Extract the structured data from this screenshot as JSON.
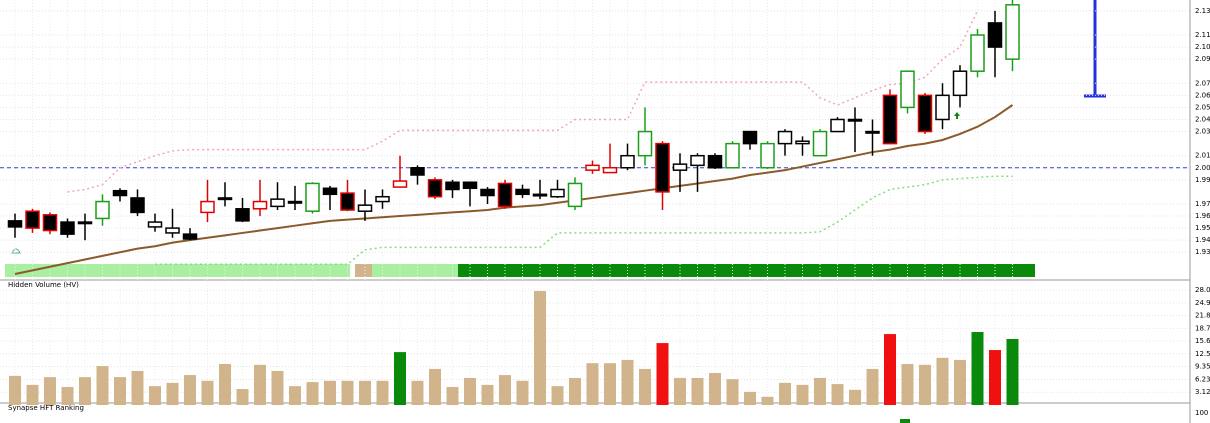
{
  "chart_data": [
    {
      "type": "candlestick",
      "categories": [
        null,
        null,
        null,
        null,
        null,
        null,
        null,
        null,
        null,
        null,
        null,
        null,
        null,
        null,
        null,
        null,
        null,
        null,
        null,
        null,
        null,
        null,
        null,
        null,
        null,
        null,
        null,
        null,
        null,
        null,
        null,
        null,
        null,
        null,
        null,
        null,
        null,
        null,
        null,
        null,
        null,
        null,
        null,
        null,
        null,
        null,
        null,
        null,
        null,
        null,
        null,
        null,
        null,
        null,
        null,
        null,
        null,
        null
      ],
      "open": [
        1.956,
        1.964,
        1.961,
        1.955,
        1.955,
        1.958,
        1.981,
        1.975,
        1.951,
        1.946,
        1.945,
        1.963,
        1.975,
        1.966,
        1.966,
        1.968,
        1.972,
        1.964,
        1.983,
        1.979,
        1.964,
        1.972,
        1.984,
        2.0,
        1.99,
        1.988,
        1.988,
        1.982,
        1.987,
        1.982,
        1.978,
        1.976,
        1.968,
        1.998,
        1.996,
        2.0,
        2.01,
        2.02,
        1.998,
        2.002,
        2.01,
        2.0,
        2.03,
        2.0,
        2.02,
        2.02,
        2.01,
        2.03,
        2.04,
        2.03,
        2.06,
        2.05,
        2.06,
        2.04,
        2.06,
        2.08,
        2.12,
        2.09
      ],
      "high": [
        1.962,
        1.966,
        1.963,
        1.958,
        1.962,
        1.978,
        1.983,
        1.982,
        1.962,
        1.966,
        1.95,
        1.99,
        1.988,
        1.975,
        1.99,
        1.988,
        1.985,
        1.988,
        1.985,
        1.99,
        1.982,
        1.982,
        2.01,
        2.002,
        1.992,
        1.99,
        1.988,
        1.984,
        1.99,
        1.986,
        1.99,
        1.99,
        1.992,
        2.006,
        2.02,
        2.02,
        2.05,
        2.022,
        2.012,
        2.012,
        2.012,
        2.022,
        2.03,
        2.022,
        2.032,
        2.026,
        2.032,
        2.042,
        2.05,
        2.04,
        2.065,
        2.08,
        2.062,
        2.07,
        2.085,
        2.115,
        2.13,
        2.139
      ],
      "low": [
        1.942,
        1.946,
        1.945,
        1.942,
        1.94,
        1.952,
        1.972,
        1.96,
        1.947,
        1.942,
        1.94,
        1.955,
        1.968,
        1.955,
        1.96,
        1.965,
        1.965,
        1.962,
        1.965,
        1.964,
        1.956,
        1.966,
        1.984,
        1.986,
        1.974,
        1.975,
        1.968,
        1.97,
        1.966,
        1.975,
        1.974,
        1.975,
        1.965,
        1.995,
        1.996,
        1.998,
        2.002,
        1.965,
        1.98,
        1.98,
        1.999,
        2.0,
        2.015,
        1.999,
        2.01,
        2.01,
        2.01,
        2.03,
        2.013,
        2.01,
        2.02,
        2.045,
        2.028,
        2.032,
        2.05,
        2.075,
        2.075,
        2.08
      ],
      "close": [
        1.951,
        1.95,
        1.948,
        1.945,
        1.955,
        1.972,
        1.977,
        1.963,
        1.955,
        1.95,
        1.941,
        1.972,
        1.975,
        1.956,
        1.972,
        1.974,
        1.972,
        1.987,
        1.978,
        1.965,
        1.969,
        1.976,
        1.989,
        1.994,
        1.976,
        1.982,
        1.983,
        1.977,
        1.968,
        1.978,
        1.978,
        1.982,
        1.987,
        2.002,
        2.0,
        2.01,
        2.03,
        1.98,
        2.003,
        2.01,
        2.0,
        2.02,
        2.02,
        2.02,
        2.03,
        2.022,
        2.03,
        2.04,
        2.04,
        2.03,
        2.02,
        2.08,
        2.03,
        2.06,
        2.08,
        2.11,
        2.1,
        2.135
      ],
      "edge_colors": [
        "#000000",
        "#e00000",
        "#e00000",
        "#000000",
        "#000000",
        "#1a9e1a",
        "#000000",
        "#000000",
        "#000000",
        "#000000",
        "#000000",
        "#e00000",
        "#000000",
        "#000000",
        "#e00000",
        "#000000",
        "#000000",
        "#1a9e1a",
        "#000000",
        "#e00000",
        "#000000",
        "#000000",
        "#e00000",
        "#000000",
        "#e00000",
        "#000000",
        "#000000",
        "#000000",
        "#e00000",
        "#000000",
        "#000000",
        "#000000",
        "#1a9e1a",
        "#e00000",
        "#e00000",
        "#000000",
        "#1a9e1a",
        "#e00000",
        "#000000",
        "#000000",
        "#000000",
        "#1a9e1a",
        "#000000",
        "#1a9e1a",
        "#000000",
        "#000000",
        "#1a9e1a",
        "#000000",
        "#000000",
        "#000000",
        "#e00000",
        "#1a9e1a",
        "#e00000",
        "#000000",
        "#000000",
        "#1a9e1a",
        "#000000",
        "#1a9e1a"
      ],
      "fill_colors": [
        "#000000",
        "#000000",
        "#000000",
        "#000000",
        "#000000",
        "#ffffff",
        "#000000",
        "#000000",
        "#ffffff",
        "#ffffff",
        "#000000",
        "#ffffff",
        "#000000",
        "#000000",
        "#ffffff",
        "#ffffff",
        "#000000",
        "#ffffff",
        "#000000",
        "#000000",
        "#ffffff",
        "#ffffff",
        "#ffffff",
        "#000000",
        "#000000",
        "#000000",
        "#000000",
        "#000000",
        "#000000",
        "#000000",
        "#000000",
        "#ffffff",
        "#ffffff",
        "#ffffff",
        "#ffffff",
        "#ffffff",
        "#ffffff",
        "#000000",
        "#ffffff",
        "#ffffff",
        "#000000",
        "#ffffff",
        "#000000",
        "#ffffff",
        "#ffffff",
        "#ffffff",
        "#ffffff",
        "#ffffff",
        "#000000",
        "#000000",
        "#000000",
        "#ffffff",
        "#000000",
        "#ffffff",
        "#ffffff",
        "#ffffff",
        "#000000",
        "#ffffff"
      ],
      "lines": [
        {
          "color": "#8b5a2b",
          "values": [
            1.912,
            1.915,
            1.918,
            1.921,
            1.924,
            1.927,
            1.93,
            1.933,
            1.935,
            1.938,
            1.94,
            1.942,
            1.944,
            1.946,
            1.948,
            1.95,
            1.952,
            1.954,
            1.956,
            1.957,
            1.958,
            1.959,
            1.96,
            1.961,
            1.962,
            1.963,
            1.964,
            1.965,
            1.967,
            1.968,
            1.969,
            1.971,
            1.973,
            1.975,
            1.977,
            1.979,
            1.981,
            1.983,
            1.985,
            1.987,
            1.989,
            1.991,
            1.994,
            1.996,
            1.998,
            2.001,
            2.004,
            2.007,
            2.01,
            2.013,
            2.015,
            2.018,
            2.02,
            2.023,
            2.028,
            2.034,
            2.042,
            2.052
          ]
        },
        {
          "color": "#f4a6b8",
          "values": [
            null,
            null,
            null,
            1.98,
            1.982,
            1.986,
            2.0,
            2.005,
            2.01,
            2.014,
            2.015,
            2.015,
            2.015,
            2.015,
            2.015,
            2.015,
            2.015,
            2.015,
            2.015,
            2.015,
            2.015,
            2.022,
            2.031,
            2.031,
            2.031,
            2.031,
            2.031,
            2.031,
            2.031,
            2.031,
            2.031,
            2.031,
            2.04,
            2.04,
            2.04,
            2.04,
            2.071,
            2.071,
            2.071,
            2.071,
            2.071,
            2.071,
            2.071,
            2.071,
            2.071,
            2.071,
            2.058,
            2.052,
            2.058,
            2.064,
            2.069,
            2.07,
            2.075,
            2.09,
            2.1,
            2.13,
            null,
            null
          ]
        },
        {
          "color": "#7fe07f",
          "values": [
            null,
            null,
            null,
            null,
            null,
            null,
            null,
            null,
            1.92,
            1.92,
            1.92,
            1.92,
            1.92,
            1.92,
            1.92,
            1.92,
            1.92,
            1.92,
            1.92,
            1.92,
            1.932,
            1.934,
            1.934,
            1.934,
            1.934,
            1.934,
            1.934,
            1.934,
            1.934,
            1.934,
            1.934,
            1.946,
            1.946,
            1.946,
            1.946,
            1.946,
            1.946,
            1.946,
            1.946,
            1.946,
            1.946,
            1.946,
            1.946,
            1.946,
            1.946,
            1.946,
            1.947,
            1.955,
            1.965,
            1.975,
            1.982,
            1.984,
            1.986,
            1.99,
            1.991,
            1.992,
            1.993,
            1.993
          ]
        }
      ],
      "hline": 2,
      "hline_color": "#3344cc",
      "ylim": [
        1.907,
        2.139
      ],
      "yticks": [
        2.13,
        2.11,
        {
          "value": 2.1,
          "label": "2.10"
        },
        2.09,
        2.07,
        2.06,
        2.05,
        2.04,
        2.03,
        2.01,
        {
          "value": 2,
          "label": "2.00"
        },
        1.99,
        1.97,
        1.96,
        1.95,
        1.94,
        1.93
      ],
      "grid": true
    },
    {
      "type": "bar",
      "title": "Hidden Volume (HV)",
      "values": [
        7.1,
        4.9,
        6.8,
        4.4,
        6.8,
        9.5,
        6.8,
        8.3,
        4.6,
        5.4,
        7.3,
        5.9,
        10,
        3.9,
        9.8,
        8.3,
        4.6,
        5.6,
        5.9,
        5.9,
        5.9,
        5.9,
        12.9,
        5.9,
        8.8,
        4.4,
        6.6,
        4.9,
        7.3,
        5.9,
        27.8,
        4.6,
        6.6,
        10.2,
        10.2,
        11,
        8.8,
        15.1,
        6.6,
        6.6,
        7.8,
        6.3,
        3.2,
        2,
        5.4,
        4.9,
        6.6,
        5.1,
        3.7,
        8.8,
        17.3,
        10,
        9.8,
        11.5,
        11,
        17.8,
        13.4,
        16.1
      ],
      "colors": [
        "#d2b48c",
        "#d2b48c",
        "#d2b48c",
        "#d2b48c",
        "#d2b48c",
        "#d2b48c",
        "#d2b48c",
        "#d2b48c",
        "#d2b48c",
        "#d2b48c",
        "#d2b48c",
        "#d2b48c",
        "#d2b48c",
        "#d2b48c",
        "#d2b48c",
        "#d2b48c",
        "#d2b48c",
        "#d2b48c",
        "#d2b48c",
        "#d2b48c",
        "#d2b48c",
        "#d2b48c",
        "#0a8a0a",
        "#d2b48c",
        "#d2b48c",
        "#d2b48c",
        "#d2b48c",
        "#d2b48c",
        "#d2b48c",
        "#d2b48c",
        "#d2b48c",
        "#d2b48c",
        "#d2b48c",
        "#d2b48c",
        "#d2b48c",
        "#d2b48c",
        "#d2b48c",
        "#f01010",
        "#d2b48c",
        "#d2b48c",
        "#d2b48c",
        "#d2b48c",
        "#d2b48c",
        "#d2b48c",
        "#d2b48c",
        "#d2b48c",
        "#d2b48c",
        "#d2b48c",
        "#d2b48c",
        "#d2b48c",
        "#f01010",
        "#d2b48c",
        "#d2b48c",
        "#d2b48c",
        "#d2b48c",
        "#0a8a0a",
        "#f01010",
        "#0a8a0a"
      ],
      "ylim": [
        0,
        30
      ],
      "yticks": [
        {
          "value": 28,
          "label": "28.0"
        },
        24.9,
        21.8,
        18.7,
        15.6,
        12.5,
        9.35,
        6.23,
        3.12
      ],
      "grid": true
    },
    {
      "type": "panel",
      "title": "Synapse HFT Ranking",
      "ylim": [
        0,
        100
      ],
      "yticks": [
        100
      ]
    }
  ]
}
